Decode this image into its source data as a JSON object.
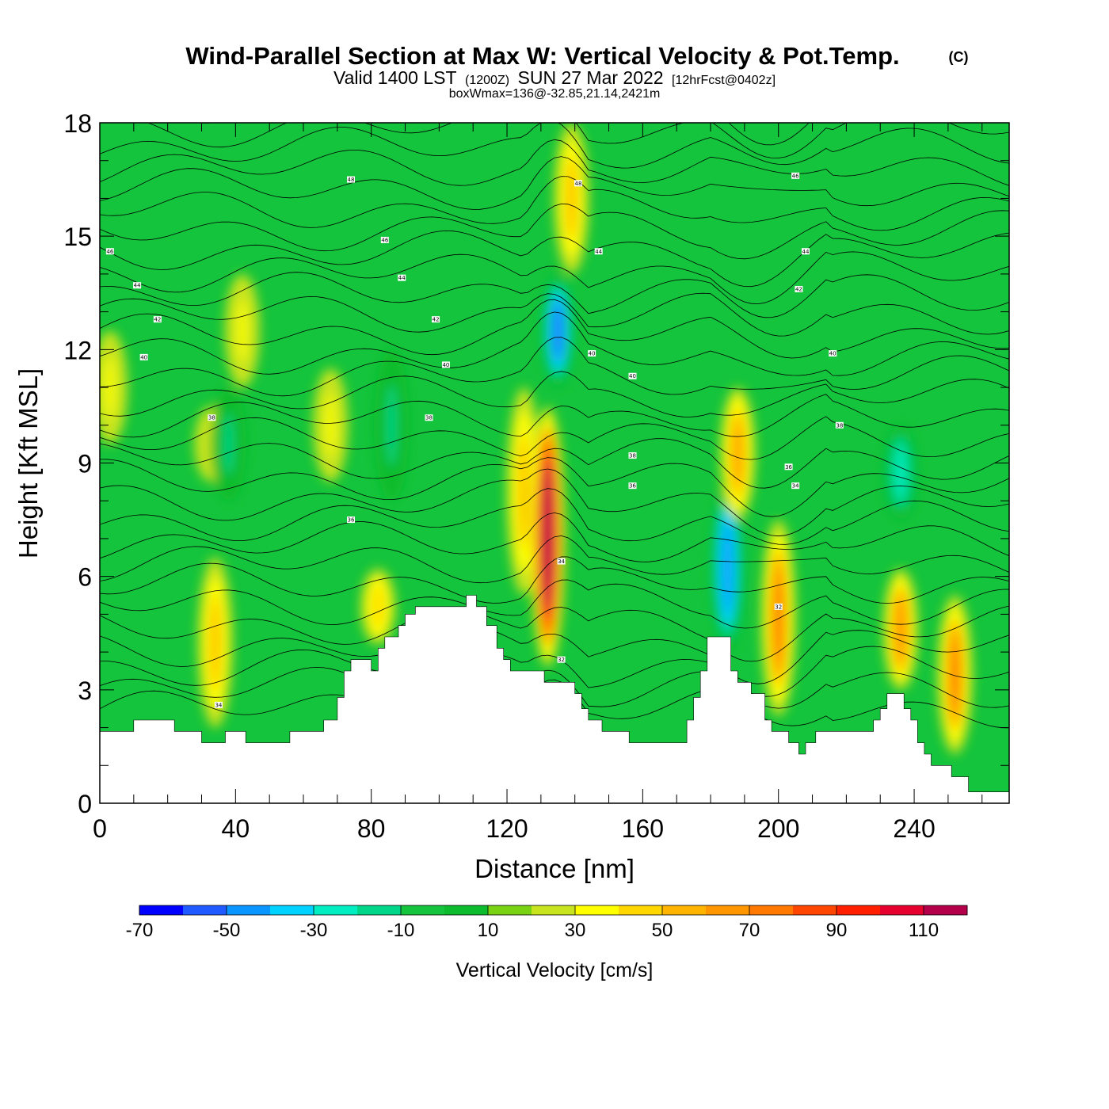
{
  "chart_data": {
    "type": "heatmap",
    "title": "Wind-Parallel Section at Max W: Vertical Velocity & Pot.Temp.",
    "copyright_mark": "(C)",
    "subtitle": {
      "valid": "Valid 1400 LST",
      "zulu": "(1200Z)",
      "date": "SUN 27 Mar 2022",
      "forecast": "[12hrFcst@0402z]"
    },
    "info_line": "boxWmax=136@-32.85,21.14,2421m",
    "xlabel": "Distance [nm]",
    "ylabel": "Height [Kft MSL]",
    "xlim": [
      0,
      268
    ],
    "ylim": [
      0,
      18
    ],
    "x_ticks": [
      "0",
      "40",
      "80",
      "120",
      "160",
      "200",
      "240"
    ],
    "y_ticks": [
      "0",
      "3",
      "6",
      "9",
      "12",
      "15",
      "18"
    ],
    "colorbar": {
      "label": "Vertical Velocity [cm/s]",
      "tick_labels": [
        "-70",
        "-50",
        "-30",
        "-10",
        "10",
        "30",
        "50",
        "70",
        "90",
        "110"
      ],
      "colors": [
        "#0000ff",
        "#1e5aff",
        "#0a96ff",
        "#00d2ff",
        "#00eec2",
        "#00d68a",
        "#14c43c",
        "#0cbc2c",
        "#7ad312",
        "#c8e41e",
        "#ffff00",
        "#ffd700",
        "#ffb400",
        "#ff9600",
        "#ff7800",
        "#ff4600",
        "#ff1e00",
        "#e6002d",
        "#b4004b"
      ]
    },
    "terrain_kft": [
      [
        0,
        1.9
      ],
      [
        10,
        1.9
      ],
      [
        10,
        2.2
      ],
      [
        22,
        2.2
      ],
      [
        22,
        1.9
      ],
      [
        30,
        1.9
      ],
      [
        30,
        1.6
      ],
      [
        37,
        1.6
      ],
      [
        37,
        1.9
      ],
      [
        43,
        1.9
      ],
      [
        43,
        1.6
      ],
      [
        56,
        1.6
      ],
      [
        56,
        1.9
      ],
      [
        66,
        1.9
      ],
      [
        66,
        2.2
      ],
      [
        70,
        2.2
      ],
      [
        70,
        2.8
      ],
      [
        72,
        2.8
      ],
      [
        72,
        3.5
      ],
      [
        74,
        3.5
      ],
      [
        74,
        3.8
      ],
      [
        80,
        3.8
      ],
      [
        80,
        3.5
      ],
      [
        82,
        3.5
      ],
      [
        82,
        4.1
      ],
      [
        84,
        4.1
      ],
      [
        84,
        4.4
      ],
      [
        88,
        4.4
      ],
      [
        88,
        4.7
      ],
      [
        90,
        4.7
      ],
      [
        90,
        5.0
      ],
      [
        93,
        5.0
      ],
      [
        93,
        5.2
      ],
      [
        108,
        5.2
      ],
      [
        108,
        5.5
      ],
      [
        111,
        5.5
      ],
      [
        111,
        5.2
      ],
      [
        114,
        5.2
      ],
      [
        114,
        4.7
      ],
      [
        117,
        4.7
      ],
      [
        117,
        4.1
      ],
      [
        119,
        4.1
      ],
      [
        119,
        3.8
      ],
      [
        121,
        3.8
      ],
      [
        121,
        3.5
      ],
      [
        131,
        3.5
      ],
      [
        131,
        3.2
      ],
      [
        140,
        3.2
      ],
      [
        140,
        2.9
      ],
      [
        142,
        2.9
      ],
      [
        142,
        2.5
      ],
      [
        144,
        2.5
      ],
      [
        144,
        2.2
      ],
      [
        148,
        2.2
      ],
      [
        148,
        1.9
      ],
      [
        156,
        1.9
      ],
      [
        156,
        1.6
      ],
      [
        173,
        1.6
      ],
      [
        173,
        2.2
      ],
      [
        175,
        2.2
      ],
      [
        175,
        2.8
      ],
      [
        177,
        2.8
      ],
      [
        177,
        3.5
      ],
      [
        179,
        3.5
      ],
      [
        179,
        4.4
      ],
      [
        186,
        4.4
      ],
      [
        186,
        3.5
      ],
      [
        188,
        3.5
      ],
      [
        188,
        3.2
      ],
      [
        192,
        3.2
      ],
      [
        192,
        2.9
      ],
      [
        196,
        2.9
      ],
      [
        196,
        2.2
      ],
      [
        198,
        2.2
      ],
      [
        198,
        1.9
      ],
      [
        203,
        1.9
      ],
      [
        203,
        1.6
      ],
      [
        206,
        1.6
      ],
      [
        206,
        1.3
      ],
      [
        208,
        1.3
      ],
      [
        208,
        1.6
      ],
      [
        211,
        1.6
      ],
      [
        211,
        1.9
      ],
      [
        228,
        1.9
      ],
      [
        228,
        2.2
      ],
      [
        230,
        2.2
      ],
      [
        230,
        2.5
      ],
      [
        232,
        2.5
      ],
      [
        232,
        2.9
      ],
      [
        237,
        2.9
      ],
      [
        237,
        2.5
      ],
      [
        239,
        2.5
      ],
      [
        239,
        2.2
      ],
      [
        241,
        2.2
      ],
      [
        241,
        1.6
      ],
      [
        243,
        1.6
      ],
      [
        243,
        1.3
      ],
      [
        245,
        1.3
      ],
      [
        245,
        1.0
      ],
      [
        251,
        1.0
      ],
      [
        251,
        0.7
      ],
      [
        256,
        0.7
      ],
      [
        256,
        0.3
      ],
      [
        268,
        0.3
      ]
    ],
    "vertical_velocity_features": [
      {
        "x": 3,
        "z0": 9.5,
        "z1": 12.5,
        "w": 20
      },
      {
        "x": 33,
        "z0": 8.5,
        "z1": 10.5,
        "w": 18
      },
      {
        "x": 34,
        "z0": 2.0,
        "z1": 6.5,
        "w": 40
      },
      {
        "x": 38,
        "z0": 8.0,
        "z1": 11.0,
        "w": -25
      },
      {
        "x": 42,
        "z0": 11.0,
        "z1": 14.0,
        "w": 20
      },
      {
        "x": 68,
        "z0": 8.5,
        "z1": 11.5,
        "w": 28
      },
      {
        "x": 82,
        "z0": 4.2,
        "z1": 6.2,
        "w": 38
      },
      {
        "x": 86,
        "z0": 8.0,
        "z1": 12.0,
        "w": -25
      },
      {
        "x": 125,
        "z0": 5.5,
        "z1": 11.0,
        "w": 45
      },
      {
        "x": 132,
        "z0": 3.6,
        "z1": 10.5,
        "w": 110
      },
      {
        "x": 135,
        "z0": 11.0,
        "z1": 14.0,
        "w": -62
      },
      {
        "x": 139,
        "z0": 14.0,
        "z1": 18.0,
        "w": 45
      },
      {
        "x": 185,
        "z0": 4.0,
        "z1": 8.5,
        "w": -60
      },
      {
        "x": 188,
        "z0": 7.5,
        "z1": 11.0,
        "w": 50
      },
      {
        "x": 200,
        "z0": 2.3,
        "z1": 7.5,
        "w": 60
      },
      {
        "x": 236,
        "z0": 3.0,
        "z1": 6.2,
        "w": 55
      },
      {
        "x": 252,
        "z0": 1.3,
        "z1": 5.5,
        "w": 65
      },
      {
        "x": 236,
        "z0": 7.5,
        "z1": 10.0,
        "w": -40
      }
    ],
    "theta_contour_labels": [
      {
        "x": 3,
        "z": 14.6,
        "text": "46"
      },
      {
        "x": 11,
        "z": 13.7,
        "text": "44"
      },
      {
        "x": 17,
        "z": 12.8,
        "text": "42"
      },
      {
        "x": 13,
        "z": 11.8,
        "text": "40"
      },
      {
        "x": 33,
        "z": 10.2,
        "text": "38"
      },
      {
        "x": 74,
        "z": 16.5,
        "text": "48"
      },
      {
        "x": 84,
        "z": 14.9,
        "text": "46"
      },
      {
        "x": 89,
        "z": 13.9,
        "text": "44"
      },
      {
        "x": 99,
        "z": 12.8,
        "text": "42"
      },
      {
        "x": 102,
        "z": 11.6,
        "text": "40"
      },
      {
        "x": 97,
        "z": 10.2,
        "text": "38"
      },
      {
        "x": 74,
        "z": 7.5,
        "text": "36"
      },
      {
        "x": 141,
        "z": 16.4,
        "text": "48"
      },
      {
        "x": 147,
        "z": 14.6,
        "text": "44"
      },
      {
        "x": 145,
        "z": 11.9,
        "text": "40"
      },
      {
        "x": 157,
        "z": 11.3,
        "text": "40"
      },
      {
        "x": 157,
        "z": 9.2,
        "text": "38"
      },
      {
        "x": 157,
        "z": 8.4,
        "text": "36"
      },
      {
        "x": 136,
        "z": 6.4,
        "text": "34"
      },
      {
        "x": 136,
        "z": 3.8,
        "text": "32"
      },
      {
        "x": 35,
        "z": 2.6,
        "text": "34"
      },
      {
        "x": 205,
        "z": 16.6,
        "text": "46"
      },
      {
        "x": 208,
        "z": 14.6,
        "text": "44"
      },
      {
        "x": 206,
        "z": 13.6,
        "text": "42"
      },
      {
        "x": 216,
        "z": 11.9,
        "text": "40"
      },
      {
        "x": 218,
        "z": 10.0,
        "text": "38"
      },
      {
        "x": 203,
        "z": 8.9,
        "text": "36"
      },
      {
        "x": 205,
        "z": 8.4,
        "text": "34"
      },
      {
        "x": 200,
        "z": 5.2,
        "text": "32"
      }
    ]
  }
}
